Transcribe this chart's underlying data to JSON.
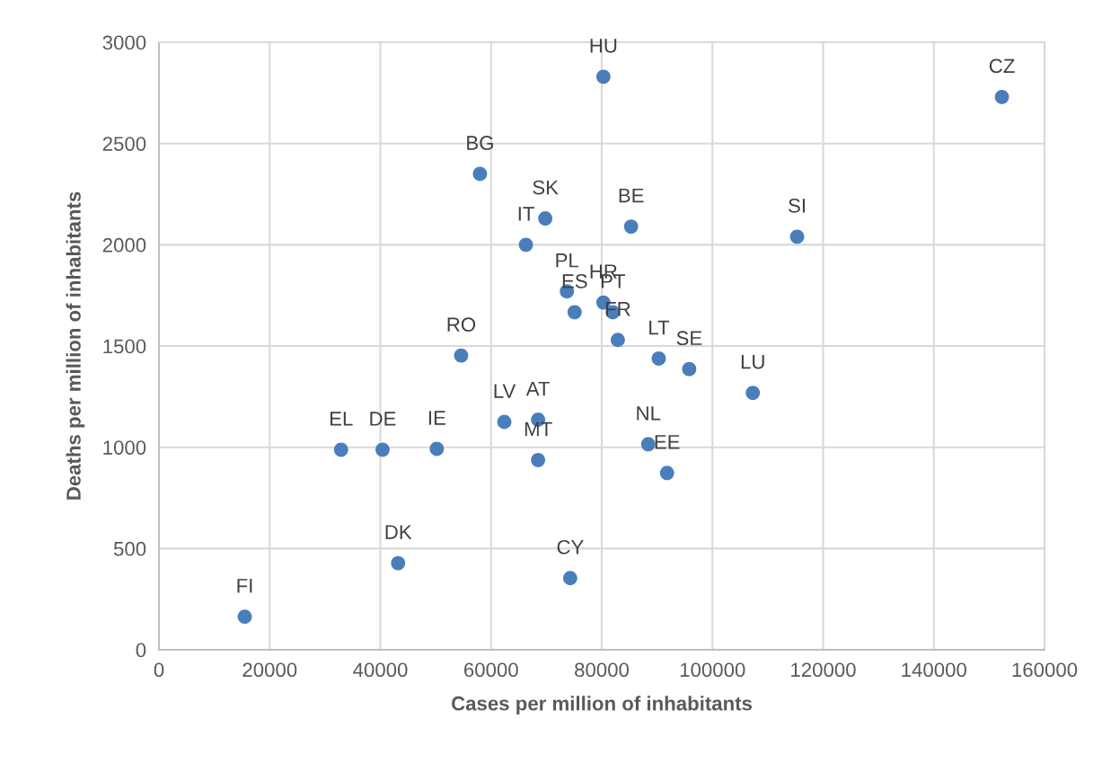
{
  "chart_data": {
    "type": "scatter",
    "xlabel": "Cases per million of inhabitants",
    "ylabel": "Deaths per million of inhabitants",
    "xlim": [
      0,
      160000
    ],
    "xticks": [
      0,
      20000,
      40000,
      60000,
      80000,
      100000,
      120000,
      140000,
      160000
    ],
    "ylim": [
      0,
      3000
    ],
    "yticks": [
      0,
      500,
      1000,
      1500,
      2000,
      2500,
      3000
    ],
    "grid": true,
    "marker": "circle",
    "legend": false,
    "series": [
      {
        "name": "HU",
        "color": "#4a7ebb",
        "x": [
          80300
        ],
        "values": [
          2830
        ]
      },
      {
        "name": "CZ",
        "color": "#4a7ebb",
        "x": [
          152300
        ],
        "values": [
          2730
        ]
      },
      {
        "name": "BG",
        "color": "#4a7ebb",
        "x": [
          58000
        ],
        "values": [
          2350
        ]
      },
      {
        "name": "SK",
        "color": "#4a7ebb",
        "x": [
          69800
        ],
        "values": [
          2130
        ]
      },
      {
        "name": "BE",
        "color": "#4a7ebb",
        "x": [
          85300
        ],
        "values": [
          2090
        ]
      },
      {
        "name": "SI",
        "color": "#4a7ebb",
        "x": [
          115300
        ],
        "values": [
          2040
        ]
      },
      {
        "name": "IT",
        "color": "#4a7ebb",
        "x": [
          66300
        ],
        "values": [
          2000
        ]
      },
      {
        "name": "PL",
        "color": "#4a7ebb",
        "x": [
          73700
        ],
        "values": [
          1770
        ]
      },
      {
        "name": "HR",
        "color": "#4a7ebb",
        "x": [
          80300
        ],
        "values": [
          1715
        ]
      },
      {
        "name": "ES",
        "color": "#4a7ebb",
        "x": [
          75100
        ],
        "values": [
          1667
        ]
      },
      {
        "name": "PT",
        "color": "#4a7ebb",
        "x": [
          82000
        ],
        "values": [
          1667
        ]
      },
      {
        "name": "FR",
        "color": "#4a7ebb",
        "x": [
          82900
        ],
        "values": [
          1530
        ]
      },
      {
        "name": "RO",
        "color": "#4a7ebb",
        "x": [
          54600
        ],
        "values": [
          1453
        ]
      },
      {
        "name": "LT",
        "color": "#4a7ebb",
        "x": [
          90300
        ],
        "values": [
          1438
        ]
      },
      {
        "name": "SE",
        "color": "#4a7ebb",
        "x": [
          95800
        ],
        "values": [
          1386
        ]
      },
      {
        "name": "LU",
        "color": "#4a7ebb",
        "x": [
          107300
        ],
        "values": [
          1269
        ]
      },
      {
        "name": "LV",
        "color": "#4a7ebb",
        "x": [
          62400
        ],
        "values": [
          1125
        ]
      },
      {
        "name": "AT",
        "color": "#4a7ebb",
        "x": [
          68500
        ],
        "values": [
          1136
        ]
      },
      {
        "name": "NL",
        "color": "#4a7ebb",
        "x": [
          88400
        ],
        "values": [
          1015
        ]
      },
      {
        "name": "EL",
        "color": "#4a7ebb",
        "x": [
          32900
        ],
        "values": [
          988
        ]
      },
      {
        "name": "DE",
        "color": "#4a7ebb",
        "x": [
          40400
        ],
        "values": [
          988
        ]
      },
      {
        "name": "IE",
        "color": "#4a7ebb",
        "x": [
          50200
        ],
        "values": [
          992
        ]
      },
      {
        "name": "MT",
        "color": "#4a7ebb",
        "x": [
          68500
        ],
        "values": [
          937
        ]
      },
      {
        "name": "EE",
        "color": "#4a7ebb",
        "x": [
          91800
        ],
        "values": [
          873
        ]
      },
      {
        "name": "DK",
        "color": "#4a7ebb",
        "x": [
          43200
        ],
        "values": [
          428
        ]
      },
      {
        "name": "CY",
        "color": "#4a7ebb",
        "x": [
          74300
        ],
        "values": [
          354
        ]
      },
      {
        "name": "FI",
        "color": "#4a7ebb",
        "x": [
          15500
        ],
        "values": [
          163
        ]
      }
    ]
  }
}
